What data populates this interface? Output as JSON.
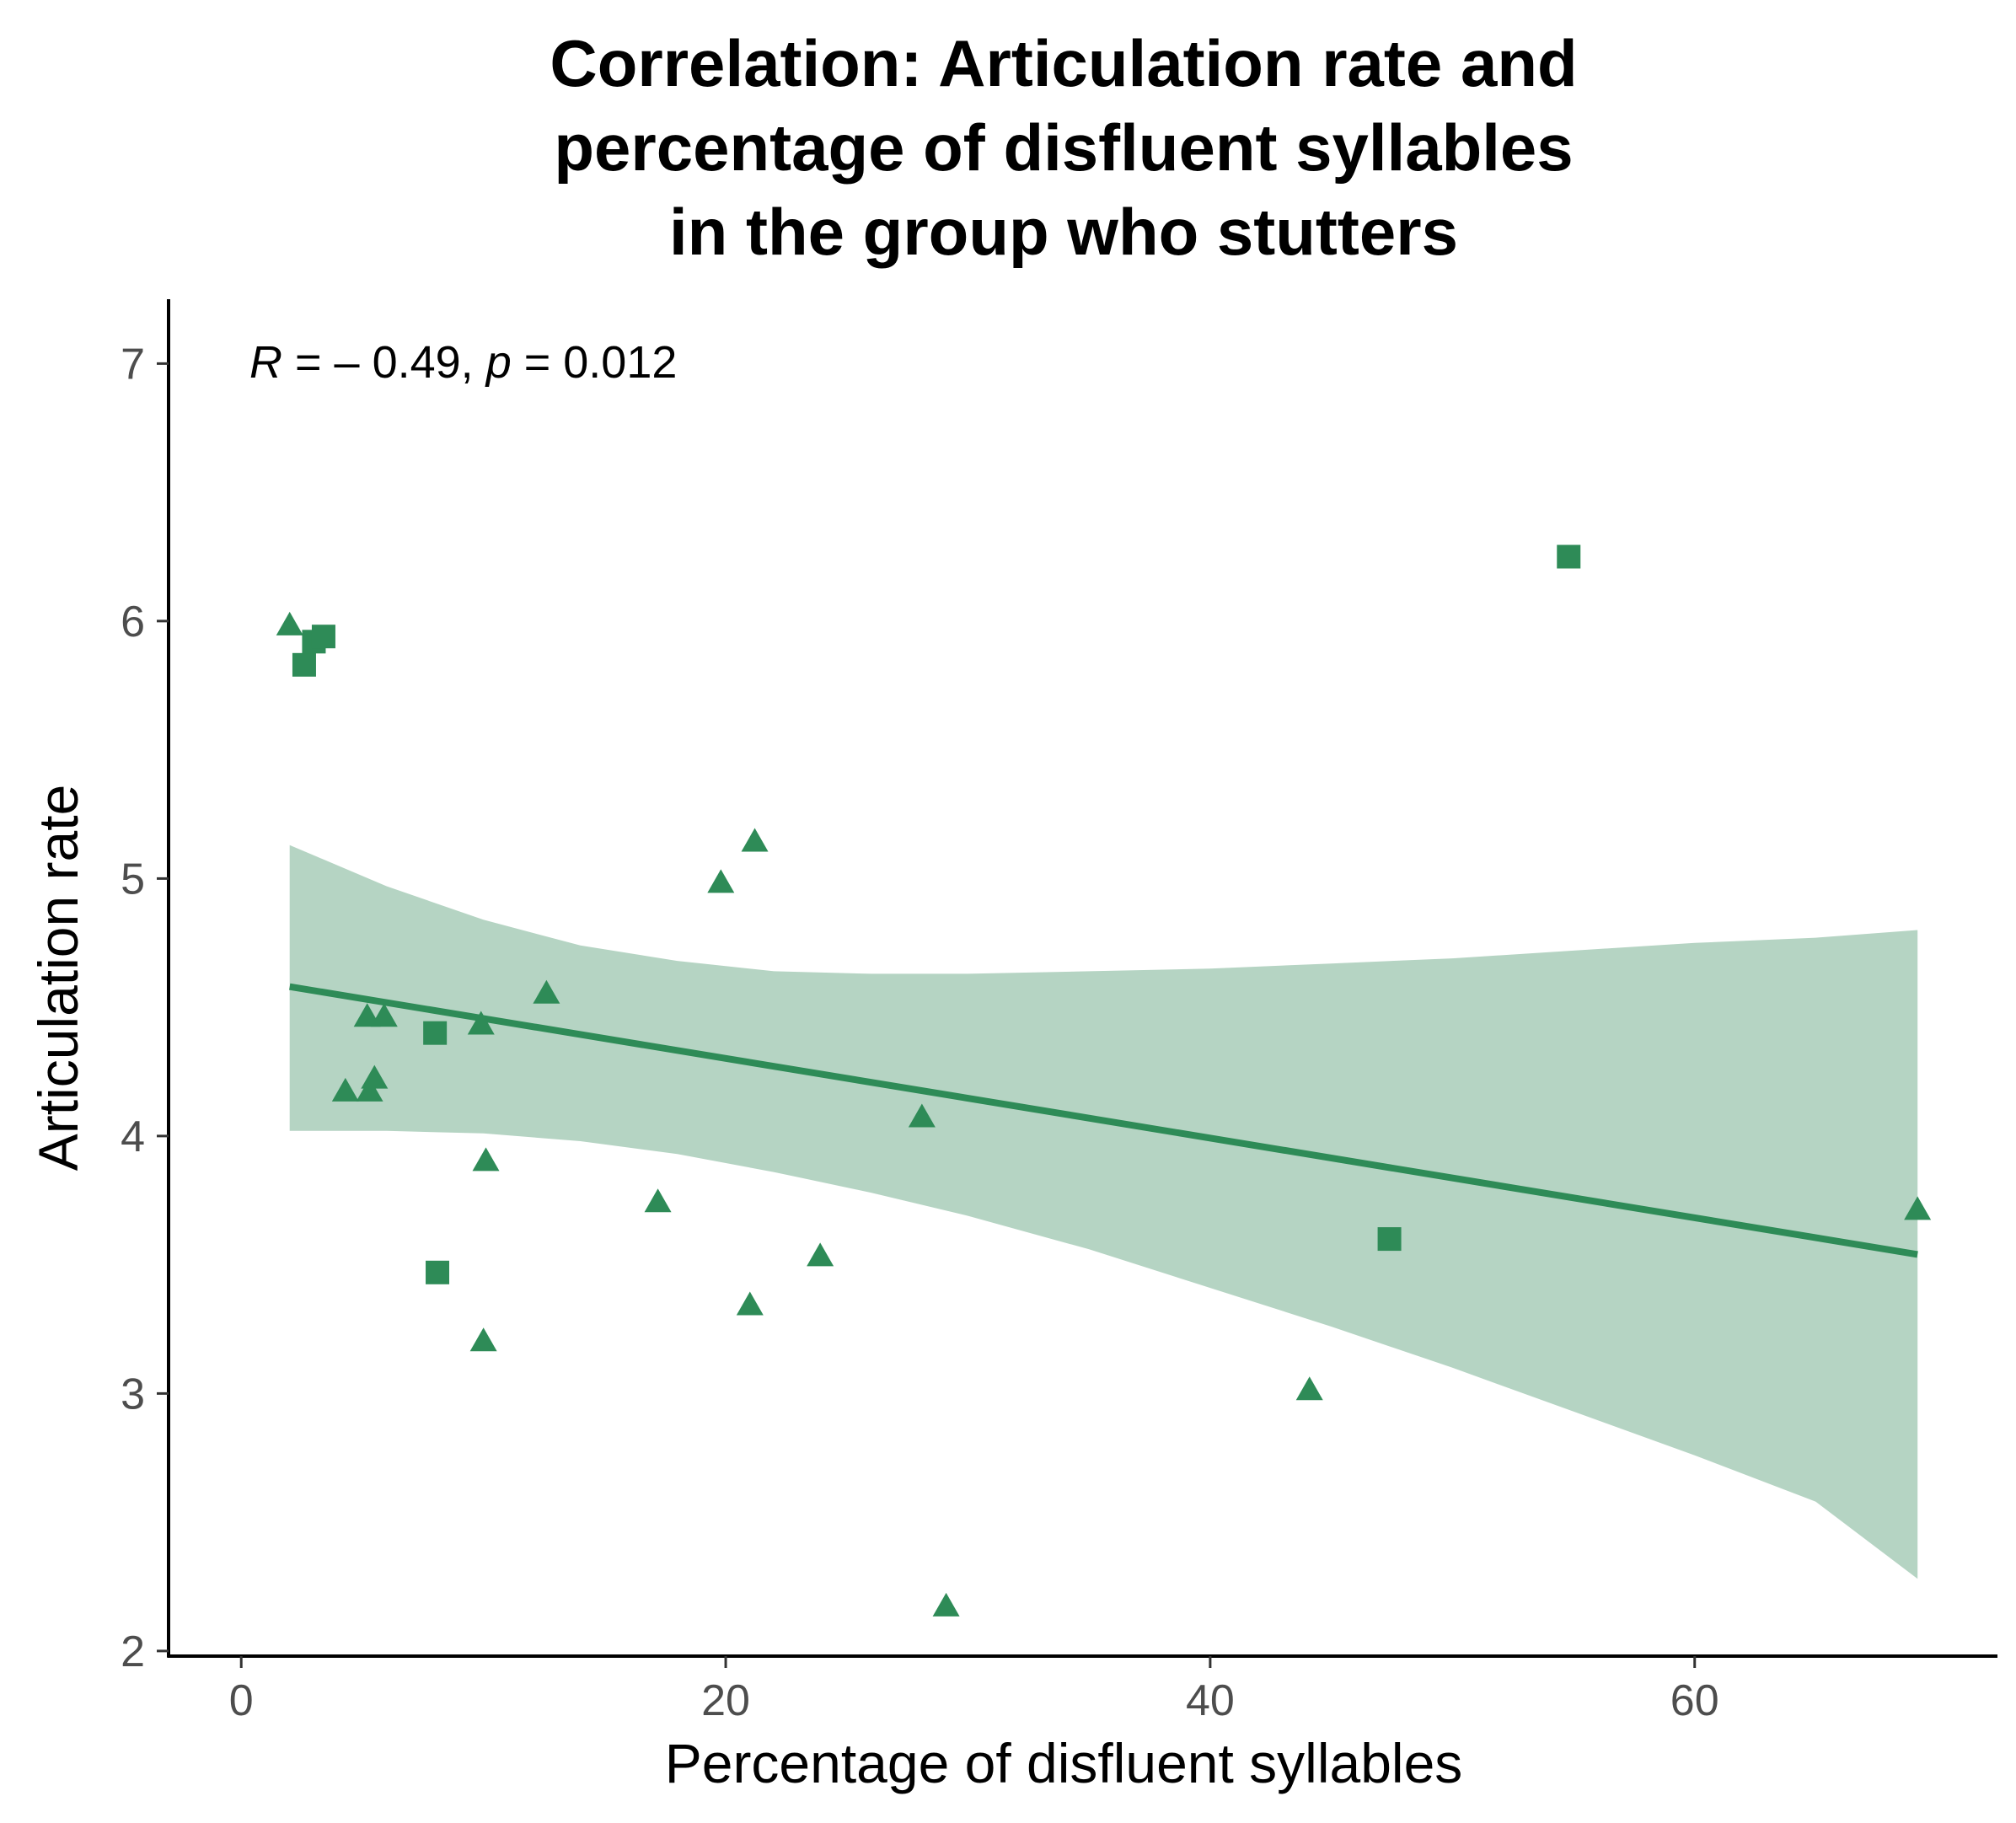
{
  "chart_data": {
    "type": "scatter",
    "title_lines": [
      "Correlation: Articulation rate and",
      "percentage of disfluent syllables",
      "in the group who stutters"
    ],
    "xlabel": "Percentage of disfluent syllables",
    "ylabel": "Articulation rate",
    "xlim": [
      -3,
      72.5
    ],
    "ylim": [
      1.98,
      7.25
    ],
    "x_ticks": [
      0,
      20,
      40,
      60
    ],
    "x_tick_labels": [
      "0",
      "20",
      "40",
      "60"
    ],
    "y_ticks": [
      2,
      3,
      4,
      5,
      6,
      7
    ],
    "y_tick_labels": [
      "2",
      "3",
      "4",
      "5",
      "6",
      "7"
    ],
    "grid": false,
    "annotation": {
      "r_symbol": "R",
      "r_value": " = – 0.49, ",
      "p_symbol": "p",
      "p_value": " = 0.012"
    },
    "colors": {
      "points": "#2e8b57",
      "line": "#2e8b57",
      "band": "#b5d4c3",
      "axis": "#000000"
    },
    "series": [
      {
        "name": "triangle",
        "marker": "triangle",
        "points": [
          [
            2,
            5.99
          ],
          [
            4.3,
            4.18
          ],
          [
            5.2,
            4.47
          ],
          [
            5.3,
            4.18
          ],
          [
            5.5,
            4.23
          ],
          [
            5.9,
            4.47
          ],
          [
            9.9,
            4.44
          ],
          [
            10.1,
            3.91
          ],
          [
            10.0,
            3.21
          ],
          [
            12.6,
            4.56
          ],
          [
            17.2,
            3.75
          ],
          [
            19.8,
            4.99
          ],
          [
            21.0,
            3.35
          ],
          [
            21.2,
            5.15
          ],
          [
            23.9,
            3.54
          ],
          [
            28.1,
            4.08
          ],
          [
            29.1,
            2.18
          ],
          [
            44.1,
            3.02
          ],
          [
            69.2,
            3.72
          ]
        ]
      },
      {
        "name": "square",
        "marker": "square",
        "points": [
          [
            2.6,
            5.83
          ],
          [
            3.0,
            5.92
          ],
          [
            3.4,
            5.94
          ],
          [
            8.0,
            4.4
          ],
          [
            8.1,
            3.47
          ],
          [
            47.4,
            3.6
          ],
          [
            54.8,
            6.25
          ]
        ]
      }
    ],
    "regression_line": {
      "x": [
        2,
        69.2
      ],
      "y": [
        4.58,
        3.54
      ]
    },
    "confidence_band": {
      "x": [
        2,
        6,
        10,
        14,
        18,
        22,
        26,
        30,
        35,
        40,
        45,
        50,
        55,
        60,
        65,
        69.2
      ],
      "upper": [
        5.13,
        4.97,
        4.84,
        4.74,
        4.68,
        4.64,
        4.63,
        4.63,
        4.64,
        4.65,
        4.67,
        4.69,
        4.72,
        4.75,
        4.77,
        4.8
      ],
      "lower": [
        4.02,
        4.02,
        4.01,
        3.98,
        3.93,
        3.86,
        3.78,
        3.69,
        3.56,
        3.41,
        3.26,
        3.1,
        2.93,
        2.76,
        2.58,
        2.28
      ]
    }
  }
}
